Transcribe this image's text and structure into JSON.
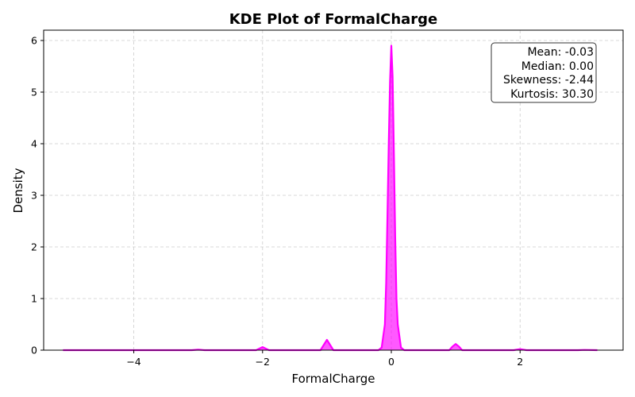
{
  "chart_data": {
    "type": "area",
    "title": "KDE Plot of FormalCharge",
    "xlabel": "FormalCharge",
    "ylabel": "Density",
    "xlim": [
      -5.4,
      3.6
    ],
    "ylim": [
      0,
      6.2
    ],
    "x_ticks": [
      -4,
      -2,
      0,
      2
    ],
    "x_tick_labels": [
      "−4",
      "−2",
      "0",
      "2"
    ],
    "y_ticks": [
      0,
      1,
      2,
      3,
      4,
      5,
      6
    ],
    "y_tick_labels": [
      "0",
      "1",
      "2",
      "3",
      "4",
      "5",
      "6"
    ],
    "grid": true,
    "series": [
      {
        "color": "#ff00ff",
        "x": [
          -5.1,
          -3.1,
          -3.0,
          -2.9,
          -2.1,
          -2.0,
          -1.9,
          -1.1,
          -1.05,
          -1.0,
          -0.95,
          -0.9,
          -0.2,
          -0.15,
          -0.1,
          -0.08,
          -0.06,
          -0.04,
          -0.02,
          0.0,
          0.02,
          0.04,
          0.06,
          0.08,
          0.1,
          0.15,
          0.2,
          0.9,
          0.95,
          1.0,
          1.05,
          1.1,
          1.9,
          2.0,
          2.1,
          2.9,
          3.0,
          3.2
        ],
        "y": [
          0.0,
          0.0,
          0.01,
          0.0,
          0.0,
          0.06,
          0.0,
          0.0,
          0.1,
          0.2,
          0.1,
          0.0,
          0.0,
          0.05,
          0.5,
          1.3,
          2.6,
          4.0,
          5.2,
          5.9,
          5.3,
          3.8,
          2.2,
          1.0,
          0.5,
          0.05,
          0.0,
          0.0,
          0.07,
          0.12,
          0.07,
          0.0,
          0.0,
          0.02,
          0.0,
          0.0,
          0.005,
          0.0
        ]
      }
    ],
    "stats_box": {
      "position": "top-right",
      "lines": [
        "Mean: -0.03",
        "Median: 0.00",
        "Skewness: -2.44",
        "Kurtosis: 30.30"
      ]
    }
  }
}
